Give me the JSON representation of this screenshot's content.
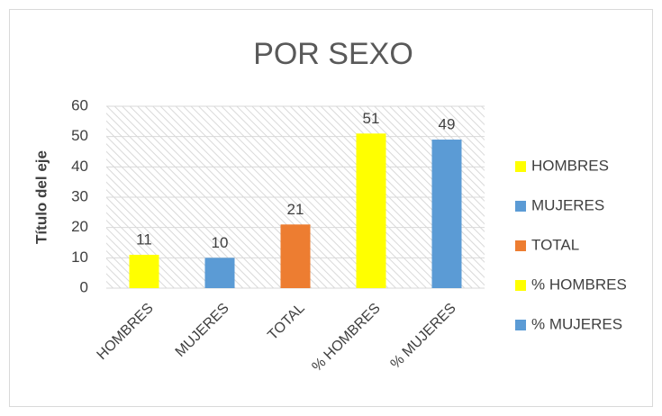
{
  "chart_data": {
    "type": "bar",
    "title": "POR SEXO",
    "y_label": "Título del eje",
    "categories": [
      "HOMBRES",
      "MUJERES",
      "TOTAL",
      "% HOMBRES",
      "% MUJERES"
    ],
    "values": [
      11,
      10,
      21,
      51,
      49
    ],
    "colors": [
      "#ffff00",
      "#5b9bd5",
      "#ed7d31",
      "#ffff00",
      "#5b9bd5"
    ],
    "ylim": [
      0,
      60
    ],
    "yticks": [
      0,
      10,
      20,
      30,
      40,
      50,
      60
    ],
    "grid": true,
    "legend": "right"
  }
}
